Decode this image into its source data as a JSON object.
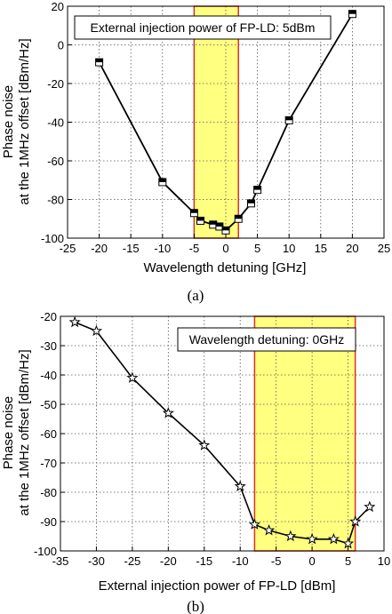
{
  "chart_data": [
    {
      "type": "line",
      "caption": "(a)",
      "annotation": "External injection power of FP-LD: 5dBm",
      "xlabel": "Wavelength detuning [GHz]",
      "ylabel_lines": [
        "Phase noise",
        "at the 1MHz offset [dBm/Hz]"
      ],
      "xlim": [
        -25,
        25
      ],
      "ylim": [
        -100,
        20
      ],
      "x_ticks": [
        -25,
        -20,
        -15,
        -10,
        -5,
        0,
        5,
        10,
        15,
        20,
        25
      ],
      "y_ticks": [
        -100,
        -80,
        -60,
        -40,
        -20,
        0,
        20
      ],
      "grid": true,
      "marker": "square",
      "highlight": {
        "x_from": -5,
        "x_to": 2,
        "fill": "#ffff80",
        "edge": "#e03020"
      },
      "series": [
        {
          "x": [
            -20,
            -10,
            -5,
            -4,
            -2,
            -1,
            0,
            2,
            4,
            5,
            10,
            20
          ],
          "y": [
            -9,
            -71,
            -87,
            -91,
            -93,
            -94,
            -96,
            -90,
            -82,
            -75,
            -39,
            16
          ]
        }
      ]
    },
    {
      "type": "line",
      "caption": "(b)",
      "annotation": "Wavelength detuning: 0GHz",
      "xlabel": "External injection power of FP-LD [dBm]",
      "ylabel_lines": [
        "Phase noise",
        "at the 1MHz offset [dBm/Hz]"
      ],
      "xlim": [
        -35,
        10
      ],
      "ylim": [
        -100,
        -20
      ],
      "x_ticks": [
        -35,
        -30,
        -25,
        -20,
        -15,
        -10,
        -5,
        0,
        5,
        10
      ],
      "y_ticks": [
        -100,
        -90,
        -80,
        -70,
        -60,
        -50,
        -40,
        -30,
        -20
      ],
      "grid": true,
      "marker": "star",
      "highlight": {
        "x_from": -8,
        "x_to": 6,
        "fill": "#ffff80",
        "edge": "#e03020"
      },
      "series": [
        {
          "x": [
            -33,
            -30,
            -25,
            -20,
            -15,
            -10,
            -8,
            -6,
            -3,
            0,
            3,
            5,
            6,
            8
          ],
          "y": [
            -22,
            -25,
            -41,
            -53,
            -64,
            -78,
            -91,
            -93,
            -95,
            -96,
            -96,
            -97.5,
            -90,
            -85
          ]
        }
      ]
    }
  ]
}
